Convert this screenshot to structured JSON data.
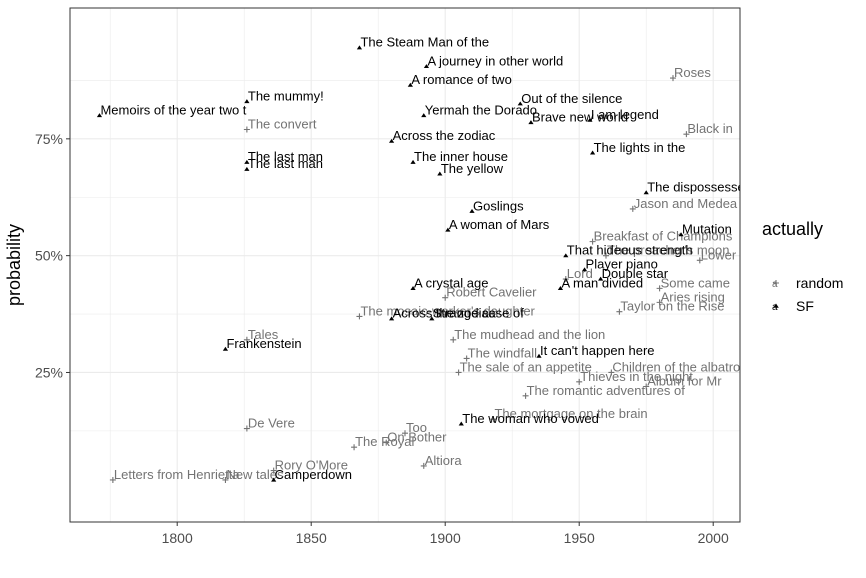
{
  "chart_data": {
    "type": "scatter",
    "title": "",
    "xlabel": "",
    "ylabel": "probability",
    "xlim": [
      1760,
      2010
    ],
    "ylim": [
      -0.07,
      1.03
    ],
    "x_ticks": [
      1800,
      1850,
      1900,
      1950,
      2000
    ],
    "y_ticks": [
      {
        "value": 0.25,
        "label": "25%"
      },
      {
        "value": 0.5,
        "label": "50%"
      },
      {
        "value": 0.75,
        "label": "75%"
      }
    ],
    "grid": true,
    "legend": {
      "title": "actually",
      "position": "right",
      "entries": [
        {
          "key": "random",
          "label": "random",
          "color": "#737373",
          "marker": "plus"
        },
        {
          "key": "SF",
          "label": "SF",
          "color": "#000000",
          "marker": "triangle"
        }
      ]
    },
    "colors": {
      "random": "#737373",
      "SF": "#000000",
      "grid": "#ebebeb",
      "panel_border": "#333333"
    },
    "series": [
      {
        "name": "SF",
        "points": [
          {
            "x": 1771,
            "y": 0.8,
            "label": "Memoirs of the year two t"
          },
          {
            "x": 1826,
            "y": 0.83,
            "label": "The mummy!"
          },
          {
            "x": 1826,
            "y": 0.7,
            "label": "The last man"
          },
          {
            "x": 1826,
            "y": 0.685,
            "label": "The last man"
          },
          {
            "x": 1818,
            "y": 0.3,
            "label": "Frankenstein"
          },
          {
            "x": 1836,
            "y": 0.02,
            "label": "Camperdown"
          },
          {
            "x": 1868,
            "y": 0.945,
            "label": "The Steam Man of the"
          },
          {
            "x": 1880,
            "y": 0.745,
            "label": "Across the zodiac"
          },
          {
            "x": 1880,
            "y": 0.365,
            "label": "Across the zodiac"
          },
          {
            "x": 1887,
            "y": 0.865,
            "label": "A romance of two"
          },
          {
            "x": 1888,
            "y": 0.7,
            "label": "The inner house"
          },
          {
            "x": 1888,
            "y": 0.43,
            "label": "A crystal age"
          },
          {
            "x": 1893,
            "y": 0.905,
            "label": "A journey in other world"
          },
          {
            "x": 1892,
            "y": 0.8,
            "label": "Yermah the Dorado"
          },
          {
            "x": 1895,
            "y": 0.365,
            "label": "Strange case of"
          },
          {
            "x": 1898,
            "y": 0.675,
            "label": "The yellow"
          },
          {
            "x": 1901,
            "y": 0.555,
            "label": "A woman of Mars"
          },
          {
            "x": 1906,
            "y": 0.14,
            "label": "The woman who vowed"
          },
          {
            "x": 1910,
            "y": 0.595,
            "label": "Goslings"
          },
          {
            "x": 1928,
            "y": 0.825,
            "label": "Out of the silence"
          },
          {
            "x": 1932,
            "y": 0.785,
            "label": "Brave new world"
          },
          {
            "x": 1935,
            "y": 0.285,
            "label": "It can't happen here"
          },
          {
            "x": 1943,
            "y": 0.43,
            "label": "A man divided"
          },
          {
            "x": 1945,
            "y": 0.5,
            "label": "That hideous strength"
          },
          {
            "x": 1952,
            "y": 0.47,
            "label": "Player piano"
          },
          {
            "x": 1954,
            "y": 0.79,
            "label": "I am legend"
          },
          {
            "x": 1955,
            "y": 0.72,
            "label": "The lights in the"
          },
          {
            "x": 1958,
            "y": 0.45,
            "label": "Double star"
          },
          {
            "x": 1975,
            "y": 0.635,
            "label": "The dispossessed"
          },
          {
            "x": 1988,
            "y": 0.545,
            "label": "Mutation"
          }
        ]
      },
      {
        "name": "random",
        "points": [
          {
            "x": 1826,
            "y": 0.77,
            "label": "The convert"
          },
          {
            "x": 1826,
            "y": 0.32,
            "label": "Tales"
          },
          {
            "x": 1826,
            "y": 0.13,
            "label": "De Vere"
          },
          {
            "x": 1776,
            "y": 0.02,
            "label": "Letters from Henrietta"
          },
          {
            "x": 1818,
            "y": 0.02,
            "label": "New tales"
          },
          {
            "x": 1836,
            "y": 0.04,
            "label": "Rory O'More"
          },
          {
            "x": 1866,
            "y": 0.09,
            "label": "The Royal"
          },
          {
            "x": 1868,
            "y": 0.37,
            "label": "The mosaic-worker's daughter"
          },
          {
            "x": 1878,
            "y": 0.1,
            "label": "On Bother"
          },
          {
            "x": 1885,
            "y": 0.12,
            "label": "Too"
          },
          {
            "x": 1892,
            "y": 0.05,
            "label": "Altiora"
          },
          {
            "x": 1900,
            "y": 0.41,
            "label": "Robert Cavelier"
          },
          {
            "x": 1903,
            "y": 0.32,
            "label": "The mudhead and the lion"
          },
          {
            "x": 1905,
            "y": 0.25,
            "label": "The sale of an appetite"
          },
          {
            "x": 1908,
            "y": 0.28,
            "label": "The windfall"
          },
          {
            "x": 1918,
            "y": 0.15,
            "label": "The mortgage on the brain"
          },
          {
            "x": 1930,
            "y": 0.2,
            "label": "The romantic adventures of"
          },
          {
            "x": 1945,
            "y": 0.45,
            "label": "Lord"
          },
          {
            "x": 1950,
            "y": 0.23,
            "label": "Thieves in the night"
          },
          {
            "x": 1955,
            "y": 0.53,
            "label": "Breakfast of Champions"
          },
          {
            "x": 1960,
            "y": 0.5,
            "label": "The preacher's moon"
          },
          {
            "x": 1962,
            "y": 0.25,
            "label": "Children of the albatross"
          },
          {
            "x": 1965,
            "y": 0.38,
            "label": "Taylor on the Rise"
          },
          {
            "x": 1970,
            "y": 0.6,
            "label": "Jason and Medea"
          },
          {
            "x": 1975,
            "y": 0.22,
            "label": "Album for Mr"
          },
          {
            "x": 1980,
            "y": 0.43,
            "label": "Some came"
          },
          {
            "x": 1980,
            "y": 0.4,
            "label": "Aries rising"
          },
          {
            "x": 1985,
            "y": 0.88,
            "label": "Roses"
          },
          {
            "x": 1990,
            "y": 0.76,
            "label": "Black in"
          },
          {
            "x": 1995,
            "y": 0.49,
            "label": "Lower"
          }
        ]
      }
    ]
  }
}
